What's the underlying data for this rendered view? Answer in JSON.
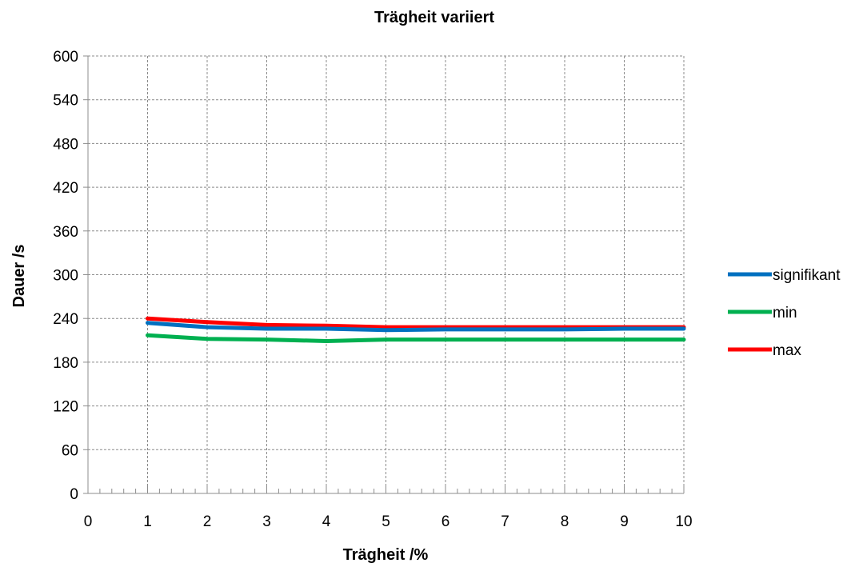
{
  "chart_data": {
    "type": "line",
    "title": "Trägheit variiert",
    "xlabel": "Trägheit /%",
    "ylabel": "Dauer /s",
    "xlim": [
      0,
      10
    ],
    "ylim": [
      0,
      600
    ],
    "x_ticks": [
      "0",
      "1",
      "2",
      "3",
      "4",
      "5",
      "6",
      "7",
      "8",
      "9",
      "10"
    ],
    "y_ticks": [
      "0",
      "60",
      "120",
      "180",
      "240",
      "300",
      "360",
      "420",
      "480",
      "540",
      "600"
    ],
    "grid": true,
    "legend_position": "right",
    "x": [
      1,
      2,
      3,
      4,
      5,
      6,
      7,
      8,
      9,
      10
    ],
    "series": [
      {
        "name": "signifikant",
        "color": "#0070c0",
        "values": [
          234,
          228,
          226,
          226,
          224,
          225,
          225,
          225,
          226,
          226
        ]
      },
      {
        "name": "min",
        "color": "#00b050",
        "values": [
          217,
          212,
          211,
          209,
          211,
          211,
          211,
          211,
          211,
          211
        ]
      },
      {
        "name": "max",
        "color": "#ff0000",
        "values": [
          240,
          235,
          231,
          230,
          228,
          228,
          228,
          228,
          228,
          228
        ]
      }
    ]
  }
}
